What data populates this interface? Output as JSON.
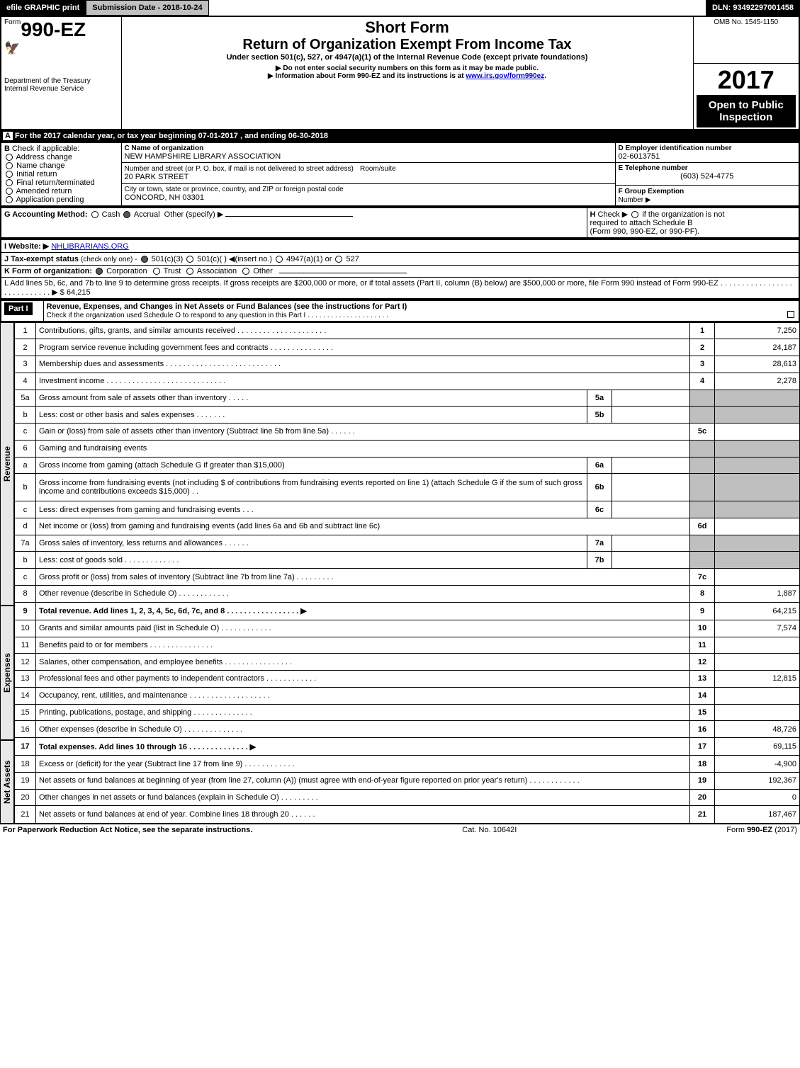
{
  "topbar": {
    "efile": "efile GRAPHIC print",
    "subdate": "Submission Date - 2018-10-24",
    "dln": "DLN: 93492297001458"
  },
  "header": {
    "form_prefix": "Form",
    "form_number": "990-EZ",
    "dept": "Department of the Treasury",
    "irs": "Internal Revenue Service",
    "short_form": "Short Form",
    "return_title": "Return of Organization Exempt From Income Tax",
    "under_section": "Under section 501(c), 527, or 4947(a)(1) of the Internal Revenue Code (except private foundations)",
    "no_ssn": "▶ Do not enter social security numbers on this form as it may be made public.",
    "info_about": "▶ Information about Form 990-EZ and its instructions is at www.irs.gov/form990ez.",
    "info_link_text": "www.irs.gov/form990ez",
    "omb": "OMB No. 1545-1150",
    "year": "2017",
    "open": "Open to Public",
    "inspection": "Inspection"
  },
  "section_a": {
    "bar": "For the 2017 calendar year, or tax year beginning 07-01-2017",
    "ending": ", and ending 06-30-2018"
  },
  "section_b": {
    "label": "Check if applicable:",
    "items": [
      "Address change",
      "Name change",
      "Initial return",
      "Final return/terminated",
      "Amended return",
      "Application pending"
    ]
  },
  "section_c": {
    "label": "C Name of organization",
    "org_name": "NEW HAMPSHIRE LIBRARY ASSOCIATION",
    "addr_label": "Number and street (or P. O. box, if mail is not delivered to street address)",
    "room_label": "Room/suite",
    "street": "20 PARK STREET",
    "city_label": "City or town, state or province, country, and ZIP or foreign postal code",
    "city": "CONCORD, NH  03301"
  },
  "section_d": {
    "label": "D Employer identification number",
    "ein": "02-6013751"
  },
  "section_e": {
    "label": "E Telephone number",
    "phone": "(603) 524-4775"
  },
  "section_f": {
    "label": "F Group Exemption",
    "number_label": "Number  ▶"
  },
  "section_g": {
    "label": "G Accounting Method:",
    "cash": "Cash",
    "accrual": "Accrual",
    "other": "Other (specify) ▶"
  },
  "section_h": {
    "label": "H",
    "text1": "Check ▶",
    "text2": "if the organization is not",
    "text3": "required to attach Schedule B",
    "text4": "(Form 990, 990-EZ, or 990-PF)."
  },
  "section_i": {
    "label": "I Website: ▶",
    "site": "NHLIBRARIANS.ORG"
  },
  "section_j": {
    "label": "J Tax-exempt status",
    "note": "(check only one) -",
    "opt1": "501(c)(3)",
    "opt2": "501(c)(  ) ◀(insert no.)",
    "opt3": "4947(a)(1) or",
    "opt4": "527"
  },
  "section_k": {
    "label": "K Form of organization:",
    "opts": [
      "Corporation",
      "Trust",
      "Association",
      "Other"
    ]
  },
  "section_l": {
    "text": "L Add lines 5b, 6c, and 7b to line 9 to determine gross receipts. If gross receipts are $200,000 or more, or if total assets (Part II, column (B) below) are $500,000 or more, file Form 990 instead of Form 990-EZ  .  .  .  .  .  .  .  .  .  .  .  .  .  .  .  .  .  .  .  .  .  .  .  .  .  .  .  . ▶ $ 64,215"
  },
  "part1": {
    "header": "Part I",
    "title": "Revenue, Expenses, and Changes in Net Assets or Fund Balances (see the instructions for Part I)",
    "check": "Check if the organization used Schedule O to respond to any question in this Part I .  .  .  .  .  .  .  .  .  .  .  .  .  .  .  .  .  .  .  .  ."
  },
  "vlabels": {
    "revenue": "Revenue",
    "expenses": "Expenses",
    "netassets": "Net Assets"
  },
  "lines": [
    {
      "n": "1",
      "desc": "Contributions, gifts, grants, and similar amounts received .  .  .  .  .  .  .  .  .  .  .  .  .  .  .  .  .  .  .  .  .",
      "col": "1",
      "val": "7,250"
    },
    {
      "n": "2",
      "desc": "Program service revenue including government fees and contracts .  .  .  .  .  .  .  .  .  .  .  .  .  .  .",
      "col": "2",
      "val": "24,187"
    },
    {
      "n": "3",
      "desc": "Membership dues and assessments .  .  .  .  .  .  .  .  .  .  .  .  .  .  .  .  .  .  .  .  .  .  .  .  .  .  .",
      "col": "3",
      "val": "28,613"
    },
    {
      "n": "4",
      "desc": "Investment income .  .  .  .  .  .  .  .  .  .  .  .  .  .  .  .  .  .  .  .  .  .  .  .  .  .  .  .",
      "col": "4",
      "val": "2,278"
    },
    {
      "n": "5a",
      "desc": "Gross amount from sale of assets other than inventory .  .  .  .  .",
      "sub": "5a",
      "subval": ""
    },
    {
      "n": "b",
      "desc": "Less: cost or other basis and sales expenses .  .  .  .  .  .  .",
      "sub": "5b",
      "subval": ""
    },
    {
      "n": "c",
      "desc": "Gain or (loss) from sale of assets other than inventory (Subtract line 5b from line 5a) .  .  .  .  .  .",
      "col": "5c",
      "val": ""
    },
    {
      "n": "6",
      "desc": "Gaming and fundraising events"
    },
    {
      "n": "a",
      "desc": "Gross income from gaming (attach Schedule G if greater than $15,000)",
      "sub": "6a",
      "subval": ""
    },
    {
      "n": "b",
      "desc": "Gross income from fundraising events (not including $                        of contributions from fundraising events reported on line 1) (attach Schedule G if the sum of such gross income and contributions exceeds $15,000)    .  .",
      "sub": "6b",
      "subval": ""
    },
    {
      "n": "c",
      "desc": "Less: direct expenses from gaming and fundraising events      .  .  .",
      "sub": "6c",
      "subval": ""
    },
    {
      "n": "d",
      "desc": "Net income or (loss) from gaming and fundraising events (add lines 6a and 6b and subtract line 6c)",
      "col": "6d",
      "val": ""
    },
    {
      "n": "7a",
      "desc": "Gross sales of inventory, less returns and allowances .  .  .  .  .  .",
      "sub": "7a",
      "subval": ""
    },
    {
      "n": "b",
      "desc": "Less: cost of goods sold       .  .  .  .  .  .  .  .  .  .  .  .  .",
      "sub": "7b",
      "subval": ""
    },
    {
      "n": "c",
      "desc": "Gross profit or (loss) from sales of inventory (Subtract line 7b from line 7a) .  .  .  .  .  .  .  .  .",
      "col": "7c",
      "val": ""
    },
    {
      "n": "8",
      "desc": "Other revenue (describe in Schedule O)                        .  .  .  .  .  .  .  .  .  .  .  .",
      "col": "8",
      "val": "1,887"
    },
    {
      "n": "9",
      "desc": "Total revenue. Add lines 1, 2, 3, 4, 5c, 6d, 7c, and 8 .  .  .  .  .  .  .  .  .  .  .  .  .  .  .  .  . ▶",
      "col": "9",
      "val": "64,215",
      "bold": true
    },
    {
      "n": "10",
      "desc": "Grants and similar amounts paid (list in Schedule O)             .  .  .  .  .  .  .  .  .  .  .  .",
      "col": "10",
      "val": "7,574"
    },
    {
      "n": "11",
      "desc": "Benefits paid to or for members                 .  .  .  .  .  .  .  .  .  .  .  .  .  .  .",
      "col": "11",
      "val": ""
    },
    {
      "n": "12",
      "desc": "Salaries, other compensation, and employee benefits .  .  .  .  .  .  .  .  .  .  .  .  .  .  .  .",
      "col": "12",
      "val": ""
    },
    {
      "n": "13",
      "desc": "Professional fees and other payments to independent contractors .  .  .  .  .  .  .  .  .  .  .  .",
      "col": "13",
      "val": "12,815"
    },
    {
      "n": "14",
      "desc": "Occupancy, rent, utilities, and maintenance .  .  .  .  .  .  .  .  .  .  .  .  .  .  .  .  .  .  .",
      "col": "14",
      "val": ""
    },
    {
      "n": "15",
      "desc": "Printing, publications, postage, and shipping            .  .  .  .  .  .  .  .  .  .  .  .  .  .",
      "col": "15",
      "val": ""
    },
    {
      "n": "16",
      "desc": "Other expenses (describe in Schedule O)             .  .  .  .  .  .  .  .  .  .  .  .  .  .",
      "col": "16",
      "val": "48,726"
    },
    {
      "n": "17",
      "desc": "Total expenses. Add lines 10 through 16            .  .  .  .  .  .  .  .  .  .  .  .  .  . ▶",
      "col": "17",
      "val": "69,115",
      "bold": true
    },
    {
      "n": "18",
      "desc": "Excess or (deficit) for the year (Subtract line 17 from line 9)        .  .  .  .  .  .  .  .  .  .  .  .",
      "col": "18",
      "val": "-4,900"
    },
    {
      "n": "19",
      "desc": "Net assets or fund balances at beginning of year (from line 27, column (A)) (must agree with end-of-year figure reported on prior year's return)             .  .  .  .  .  .  .  .  .  .  .  .",
      "col": "19",
      "val": "192,367"
    },
    {
      "n": "20",
      "desc": "Other changes in net assets or fund balances (explain in Schedule O)    .  .  .  .  .  .  .  .  .",
      "col": "20",
      "val": "0"
    },
    {
      "n": "21",
      "desc": "Net assets or fund balances at end of year. Combine lines 18 through 20       .  .  .  .  .  .",
      "col": "21",
      "val": "187,467"
    }
  ],
  "footer": {
    "left": "For Paperwork Reduction Act Notice, see the separate instructions.",
    "center": "Cat. No. 10642I",
    "right": "Form 990-EZ (2017)"
  }
}
